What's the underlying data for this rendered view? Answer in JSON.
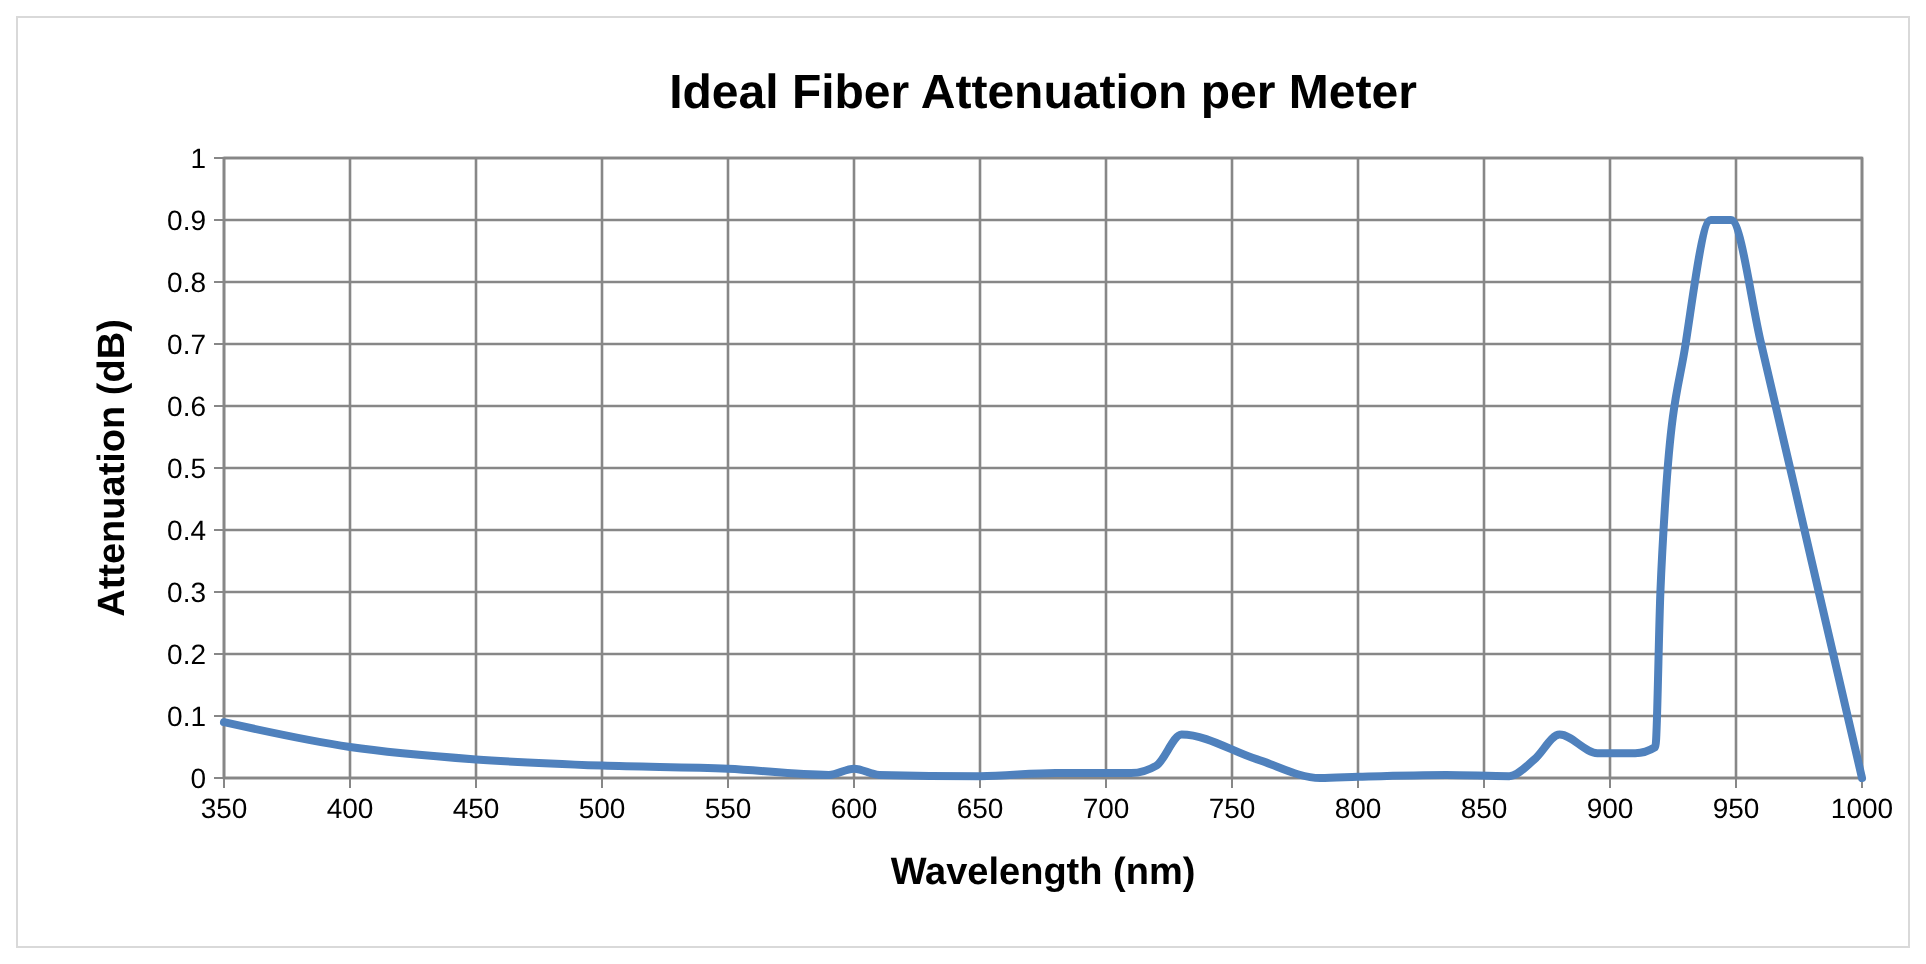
{
  "chart_data": {
    "type": "line",
    "title": "Ideal Fiber Attenuation per Meter",
    "xlabel": "Wavelength (nm)",
    "ylabel": "Attenuation (dB)",
    "x": [
      350,
      400,
      450,
      500,
      550,
      590,
      600,
      610,
      650,
      680,
      710,
      720,
      730,
      760,
      785,
      800,
      835,
      860,
      870,
      880,
      895,
      910,
      918,
      920,
      922,
      930,
      940,
      948,
      960,
      980,
      1000
    ],
    "series": [
      {
        "color": "#4f81bd",
        "values": [
          0.09,
          0.05,
          0.03,
          0.02,
          0.015,
          0.005,
          0.015,
          0.005,
          0.003,
          0.008,
          0.008,
          0.02,
          0.07,
          0.03,
          0,
          0.002,
          0.005,
          0.003,
          0.03,
          0.07,
          0.04,
          0.04,
          0.05,
          0.3,
          0.45,
          0.7,
          0.9,
          0.9,
          0.7,
          0.35,
          0
        ]
      }
    ],
    "xlim": [
      350,
      1000
    ],
    "xticks": [
      350,
      400,
      450,
      500,
      550,
      600,
      650,
      700,
      750,
      800,
      850,
      900,
      950,
      1000
    ],
    "ylim": [
      0,
      1
    ],
    "yticks": [
      0,
      0.1,
      0.2,
      0.3,
      0.4,
      0.5,
      0.6,
      0.7,
      0.8,
      0.9,
      1
    ],
    "grid": true,
    "marker": "none",
    "line_style": "solid"
  }
}
